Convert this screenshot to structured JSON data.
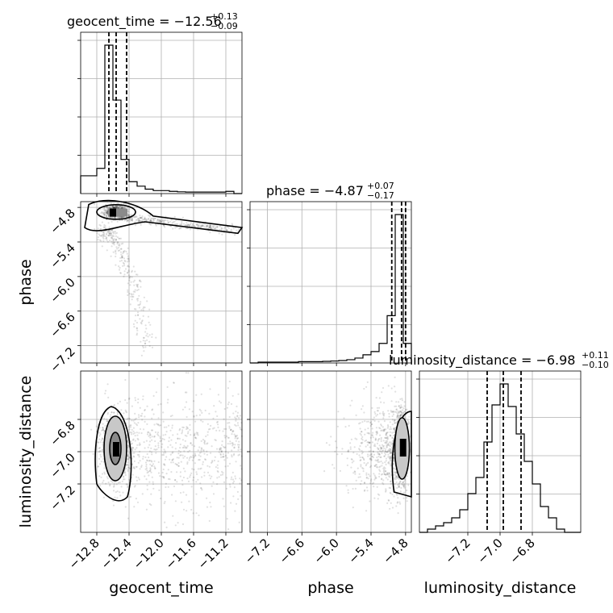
{
  "chart_data": {
    "type": "corner",
    "parameters": [
      "geocent_time",
      "phase",
      "luminosity_distance"
    ],
    "axis_labels": {
      "x": [
        "geocent_time",
        "phase",
        "luminosity_distance"
      ],
      "y": [
        "phase",
        "luminosity_distance"
      ]
    },
    "titles": [
      {
        "name": "geocent_time",
        "median": "−12.56",
        "plus": "+0.13",
        "minus": "−0.09"
      },
      {
        "name": "phase",
        "median": "−4.87",
        "plus": "+0.07",
        "minus": "−0.17"
      },
      {
        "name": "luminosity_distance",
        "median": "−6.98",
        "plus": "+0.11",
        "minus": "−0.10"
      }
    ],
    "ranges": {
      "geocent_time": [
        -13.0,
        -11.0
      ],
      "phase": [
        -7.5,
        -4.7
      ],
      "luminosity_distance": [
        -7.5,
        -6.5
      ]
    },
    "ticks": {
      "geocent_time": {
        "values": [
          -12.8,
          -12.4,
          -12.0,
          -11.6,
          -11.2
        ],
        "labels": [
          "−12.8",
          "−12.4",
          "−12.0",
          "−11.6",
          "−11.2"
        ]
      },
      "phase": {
        "values": [
          -7.2,
          -6.6,
          -6.0,
          -5.4,
          -4.8
        ],
        "labels": [
          "−7.2",
          "−6.6",
          "−6.0",
          "−5.4",
          "−4.8"
        ]
      },
      "luminosity_distance": {
        "values": [
          -7.2,
          -7.0,
          -6.8
        ],
        "labels": [
          "−7.2",
          "−7.0",
          "−6.8"
        ]
      }
    },
    "quantiles": {
      "geocent_time": [
        -12.65,
        -12.56,
        -12.43
      ],
      "phase": [
        -5.04,
        -4.87,
        -4.8
      ],
      "luminosity_distance": [
        -7.08,
        -6.98,
        -6.87
      ]
    },
    "histograms": [
      {
        "param": "geocent_time",
        "bin_edges": [
          -13.0,
          -12.9,
          -12.8,
          -12.7,
          -12.6,
          -12.5,
          -12.4,
          -12.3,
          -12.2,
          -12.1,
          -12.0,
          -11.9,
          -11.8,
          -11.7,
          -11.6,
          -11.5,
          -11.4,
          -11.3,
          -11.2,
          -11.1,
          -11.0
        ],
        "counts": [
          0.12,
          0.12,
          0.17,
          1.0,
          0.63,
          0.23,
          0.08,
          0.05,
          0.03,
          0.02,
          0.02,
          0.015,
          0.012,
          0.01,
          0.01,
          0.01,
          0.01,
          0.01,
          0.015,
          0.0
        ]
      },
      {
        "param": "phase",
        "bin_edges": [
          -7.5,
          -7.36,
          -7.22,
          -7.08,
          -6.94,
          -6.8,
          -6.66,
          -6.52,
          -6.38,
          -6.24,
          -6.1,
          -5.96,
          -5.82,
          -5.68,
          -5.54,
          -5.4,
          -5.26,
          -5.12,
          -4.98,
          -4.84,
          -4.7
        ],
        "counts": [
          0.0,
          0.005,
          0.005,
          0.005,
          0.005,
          0.005,
          0.008,
          0.008,
          0.008,
          0.01,
          0.012,
          0.015,
          0.02,
          0.03,
          0.05,
          0.07,
          0.12,
          0.29,
          0.91,
          0.12
        ]
      },
      {
        "param": "luminosity_distance",
        "bin_edges": [
          -7.5,
          -7.45,
          -7.4,
          -7.35,
          -7.3,
          -7.25,
          -7.2,
          -7.15,
          -7.1,
          -7.05,
          -7.0,
          -6.95,
          -6.9,
          -6.85,
          -6.8,
          -6.75,
          -6.7,
          -6.65,
          -6.6,
          -6.55,
          -6.5
        ],
        "counts": [
          0.0,
          0.02,
          0.04,
          0.06,
          0.09,
          0.14,
          0.24,
          0.34,
          0.56,
          0.79,
          0.92,
          0.78,
          0.61,
          0.44,
          0.3,
          0.16,
          0.09,
          0.02,
          0.0,
          0.0
        ]
      }
    ],
    "scatter_2d": [
      {
        "x_param": "geocent_time",
        "y_param": "phase",
        "mode": "x=-12.56±0.08 cluster at phase −4.87; narrow tail extending to x≈−11.0 at phase ≈ −5.0 to −5.2; curved tail descending to phase ≈ −7.3 near x≈−12.2"
      },
      {
        "x_param": "geocent_time",
        "y_param": "luminosity_distance",
        "mode": "x=-12.56, y=-6.98 core; broad diffuse spread to x≈−11.0"
      },
      {
        "x_param": "phase",
        "y_param": "luminosity_distance",
        "mode": "x=-4.87, y=-6.98 core; diffuse spread to phase ≈ −6.0"
      }
    ],
    "grid": true
  }
}
